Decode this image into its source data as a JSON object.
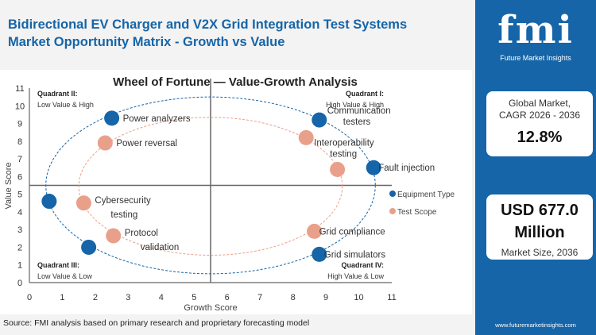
{
  "header": {
    "title_line1": "Bidirectional EV Charger and V2X Grid Integration Test Systems",
    "title_line2": "Market Opportunity Matrix - Growth vs Value"
  },
  "panel": {
    "logo_text": "fmi",
    "logo_sub": "Future Market Insights",
    "cagr_label1": "Global Market,",
    "cagr_label2": "CAGR 2026 - 2036",
    "cagr_value": "12.8%",
    "size_value1": "USD 677.0",
    "size_value2": "Million",
    "size_label": "Market Size, 2036",
    "url": "www.futuremarketinsights.com",
    "color": "#1565a8"
  },
  "source": "Source: FMI analysis based on primary research and proprietary forecasting model",
  "chart_data": {
    "type": "scatter",
    "title": "Wheel of Fortune — Value-Growth  Analysis",
    "xlabel": "Growth Score",
    "ylabel": "Value Score",
    "xlim": [
      0,
      11
    ],
    "ylim": [
      0,
      11
    ],
    "xticks": [
      0,
      1,
      2,
      3,
      4,
      5,
      6,
      7,
      8,
      9,
      10,
      11
    ],
    "yticks": [
      0,
      1,
      2,
      3,
      4,
      5,
      6,
      7,
      8,
      9,
      10,
      11
    ],
    "grid": false,
    "legend": "right",
    "quadrant_split": {
      "x": 5.5,
      "y": 5.5
    },
    "quadrants": [
      {
        "title": "Quadrant I:",
        "sub": "High Value & High"
      },
      {
        "title": "Quadrant II:",
        "sub": "Low Value & High"
      },
      {
        "title": "Quadrant III:",
        "sub": "Low Value & Low"
      },
      {
        "title": "Quadrant IV:",
        "sub": "High Value & Low"
      }
    ],
    "series": [
      {
        "name": "Equipment Type",
        "color": "#1565a8",
        "ellipse": {
          "cx": 5.5,
          "cy": 5.5,
          "rx": 5,
          "ry": 5
        },
        "points": [
          {
            "label": "Power analyzers",
            "x": 2.5,
            "y": 9.3
          },
          {
            "label": "Communication testers",
            "x": 8.8,
            "y": 9.2
          },
          {
            "label": "Fault injection",
            "x": 10.45,
            "y": 6.5
          },
          {
            "label": "Grid simulators",
            "x": 8.8,
            "y": 1.6
          },
          {
            "label": "",
            "x": 1.8,
            "y": 2.0
          },
          {
            "label": "",
            "x": 0.6,
            "y": 4.6
          }
        ]
      },
      {
        "name": "Test Scope",
        "color": "#e9a08a",
        "ellipse": {
          "cx": 5.5,
          "cy": 5.45,
          "rx": 4,
          "ry": 3.9
        },
        "points": [
          {
            "label": "Power reversal",
            "x": 2.3,
            "y": 7.9
          },
          {
            "label": "Interoperability testing",
            "x": 8.4,
            "y": 8.2
          },
          {
            "label": "",
            "x": 9.35,
            "y": 6.4
          },
          {
            "label": "Grid compliance",
            "x": 8.65,
            "y": 2.9
          },
          {
            "label": "Protocol validation",
            "x": 2.55,
            "y": 2.65
          },
          {
            "label": "Cybersecurity testing",
            "x": 1.65,
            "y": 4.5
          }
        ]
      }
    ]
  }
}
